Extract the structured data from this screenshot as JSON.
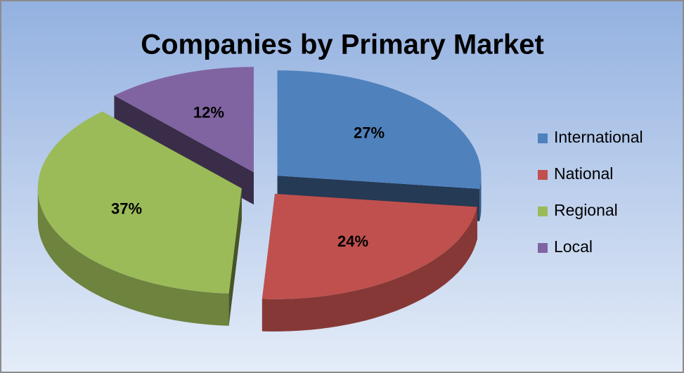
{
  "chart_data": {
    "type": "pie",
    "title": "Companies by Primary Market",
    "categories": [
      "International",
      "National",
      "Regional",
      "Local"
    ],
    "values": [
      27,
      24,
      37,
      12
    ],
    "value_labels": [
      "27%",
      "24%",
      "37%",
      "12%"
    ],
    "colors": [
      "#4f81bd",
      "#c0504d",
      "#9bbb59",
      "#8064a2"
    ],
    "legend": "right"
  }
}
